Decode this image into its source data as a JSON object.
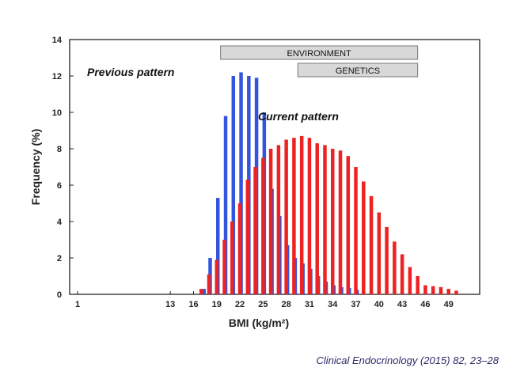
{
  "chart_data": {
    "type": "bar",
    "ylabel": "Frequency (%)",
    "xlabel": "BMI (kg/m²)",
    "ylim": [
      0,
      14
    ],
    "yticks": [
      0,
      2,
      4,
      6,
      8,
      10,
      12,
      14
    ],
    "xlim": [
      1,
      52
    ],
    "xtick_labels": [
      {
        "value": 1,
        "label": "1"
      },
      {
        "value": 13,
        "label": "13"
      },
      {
        "value": 16,
        "label": "16"
      },
      {
        "value": 19,
        "label": "19"
      },
      {
        "value": 22,
        "label": "22"
      },
      {
        "value": 25,
        "label": "25"
      },
      {
        "value": 28,
        "label": "28"
      },
      {
        "value": 31,
        "label": "31"
      },
      {
        "value": 34,
        "label": "34"
      },
      {
        "value": 37,
        "label": "37"
      },
      {
        "value": 40,
        "label": "40"
      },
      {
        "value": 43,
        "label": "43"
      },
      {
        "value": 46,
        "label": "46"
      },
      {
        "value": 49,
        "label": "49"
      }
    ],
    "series": [
      {
        "name": "Previous pattern",
        "color": "#3355dd",
        "x": [
          17.2,
          18,
          19,
          20,
          21,
          22,
          23,
          24,
          25,
          26,
          27,
          28,
          29,
          30,
          31,
          32,
          33,
          34,
          35,
          36,
          37
        ],
        "values": [
          0.3,
          2.0,
          5.3,
          9.8,
          12.0,
          12.2,
          12.0,
          11.9,
          10.0,
          5.8,
          4.3,
          2.7,
          2.0,
          1.7,
          1.4,
          1.0,
          0.7,
          0.5,
          0.4,
          0.35,
          0.25
        ]
      },
      {
        "name": "Current pattern",
        "color": "#ee2222",
        "x": [
          17,
          18,
          19,
          20,
          21,
          22,
          23,
          24,
          25,
          26,
          27,
          28,
          29,
          30,
          31,
          32,
          33,
          34,
          35,
          36,
          37,
          38,
          39,
          40,
          41,
          42,
          43,
          44,
          45,
          46,
          47,
          48,
          49,
          50
        ],
        "values": [
          0.3,
          1.1,
          1.9,
          3.0,
          4.0,
          5.0,
          6.3,
          7.0,
          7.5,
          8.0,
          8.2,
          8.5,
          8.6,
          8.7,
          8.6,
          8.3,
          8.2,
          8.0,
          7.9,
          7.6,
          7.0,
          6.2,
          5.4,
          4.5,
          3.7,
          2.9,
          2.2,
          1.5,
          1.0,
          0.5,
          0.45,
          0.4,
          0.3,
          0.2
        ]
      }
    ],
    "annotations": {
      "previous_label": "Previous pattern",
      "current_label": "Current pattern",
      "environment_label": "ENVIRONMENT",
      "genetics_label": "GENETICS"
    },
    "ranges": {
      "environment": [
        19.5,
        45
      ],
      "genetics": [
        29.5,
        45
      ]
    }
  },
  "citation": "Clinical Endocrinology (2015) 82, 23–28"
}
